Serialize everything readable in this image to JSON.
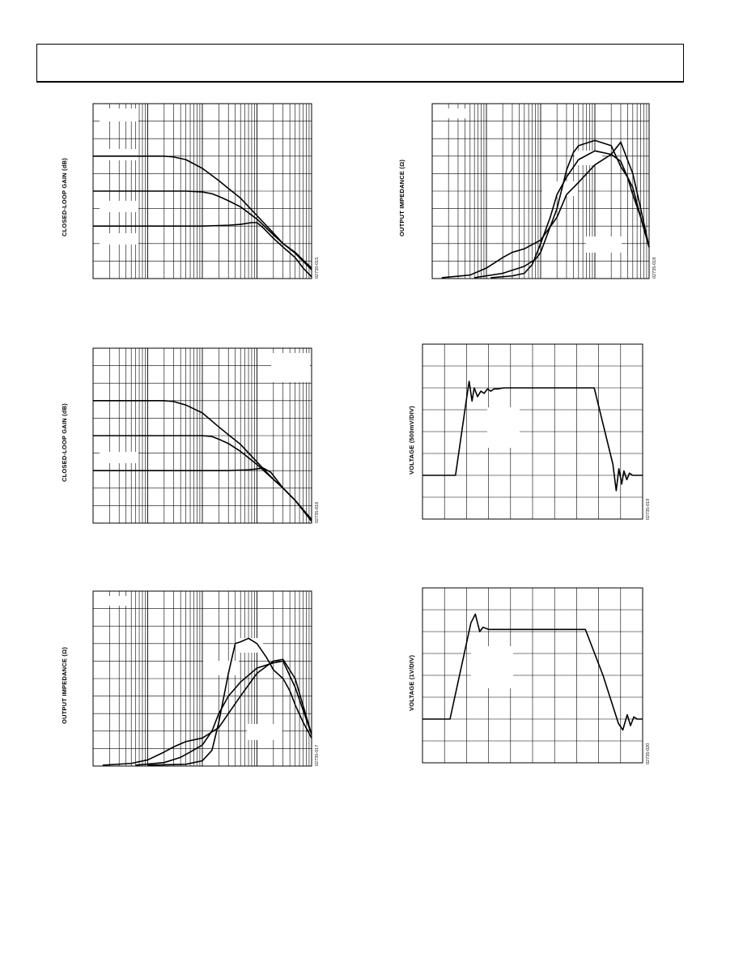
{
  "charts": [
    {
      "id": "fig15",
      "type": "line",
      "ylabel": "CLOSED-LOOP GAIN (dB)",
      "figure_id": "02735-015",
      "x_scale": "log",
      "xlim": [
        1,
        10000
      ],
      "ylim": [
        0,
        10
      ],
      "grid": true,
      "series": [
        {
          "x": [
            1,
            20,
            30,
            50,
            100,
            200,
            300,
            500,
            1000,
            2000,
            3000,
            5000,
            10000
          ],
          "y": [
            7,
            7,
            6.95,
            6.8,
            6.3,
            5.6,
            5.15,
            4.6,
            3.6,
            2.6,
            2.0,
            1.5,
            0.6
          ]
        },
        {
          "x": [
            1,
            50,
            100,
            150,
            200,
            300,
            500,
            1000,
            2000,
            3000,
            5000,
            10000
          ],
          "y": [
            5,
            5,
            4.95,
            4.85,
            4.7,
            4.45,
            4.1,
            3.4,
            2.5,
            2.0,
            1.45,
            0.5
          ]
        },
        {
          "x": [
            1,
            100,
            300,
            500,
            800,
            1000,
            1300,
            2000,
            3000,
            5000,
            7000,
            10000
          ],
          "y": [
            3,
            3,
            3.05,
            3.1,
            3.2,
            3.2,
            2.9,
            2.3,
            1.8,
            1.2,
            0.6,
            0.1
          ]
        }
      ]
    },
    {
      "id": "fig16",
      "type": "line",
      "ylabel": "CLOSED-LOOP GAIN (dB)",
      "figure_id": "02735-016",
      "x_scale": "log",
      "xlim": [
        1,
        10000
      ],
      "ylim": [
        0,
        10
      ],
      "grid": true,
      "series": [
        {
          "x": [
            1,
            20,
            30,
            50,
            100,
            200,
            300,
            500,
            1000,
            2000,
            3000,
            5000,
            10000
          ],
          "y": [
            7,
            7,
            6.95,
            6.75,
            6.3,
            5.5,
            5.05,
            4.5,
            3.5,
            2.5,
            2.0,
            1.3,
            0.2
          ]
        },
        {
          "x": [
            1,
            100,
            150,
            200,
            300,
            500,
            1000,
            2000,
            3000,
            5000,
            10000
          ],
          "y": [
            5,
            5,
            4.95,
            4.8,
            4.55,
            4.1,
            3.35,
            2.5,
            2.0,
            1.3,
            0.2
          ]
        },
        {
          "x": [
            1,
            300,
            700,
            1000,
            1300,
            1800,
            3000,
            5000,
            10000
          ],
          "y": [
            3,
            3,
            3.05,
            3.1,
            3.15,
            2.9,
            2.0,
            1.3,
            0.1
          ]
        }
      ]
    },
    {
      "id": "fig17",
      "type": "line",
      "ylabel": "OUTPUT IMPEDANCE (Ω)",
      "figure_id": "02735-017",
      "x_scale": "log",
      "xlim": [
        1,
        10000
      ],
      "ylim": [
        0,
        10
      ],
      "grid": true,
      "series": [
        {
          "x": [
            1.5,
            5,
            10,
            20,
            30,
            50,
            100,
            200,
            300,
            500,
            1000,
            2000,
            3000,
            5000,
            10000
          ],
          "y": [
            0.05,
            0.15,
            0.35,
            0.8,
            1.1,
            1.4,
            1.6,
            2.2,
            3.0,
            4.0,
            5.3,
            6.0,
            6.1,
            5.0,
            1.8
          ]
        },
        {
          "x": [
            6,
            20,
            40,
            60,
            100,
            150,
            200,
            300,
            500,
            1000,
            2000,
            3000,
            5000,
            10000
          ],
          "y": [
            0.05,
            0.2,
            0.5,
            0.8,
            1.2,
            2.0,
            3.0,
            4.0,
            4.8,
            5.6,
            5.9,
            6.0,
            4.5,
            1.8
          ]
        },
        {
          "x": [
            10,
            50,
            100,
            150,
            200,
            300,
            400,
            500,
            700,
            1000,
            1500,
            2000,
            3000,
            4000,
            5000,
            7000,
            10000
          ],
          "y": [
            0.05,
            0.1,
            0.3,
            0.9,
            2.5,
            5.3,
            7.0,
            7.1,
            7.3,
            7.0,
            6.2,
            5.5,
            5.0,
            4.3,
            3.5,
            2.5,
            1.6
          ]
        }
      ]
    },
    {
      "id": "fig18",
      "type": "line",
      "ylabel": "OUTPUT IMPEDANCE (Ω)",
      "figure_id": "02735-018",
      "x_scale": "log",
      "xlim": [
        1,
        10000
      ],
      "ylim": [
        0,
        10
      ],
      "grid": true,
      "series": [
        {
          "x": [
            1.5,
            5,
            10,
            20,
            30,
            50,
            100,
            200,
            300,
            500,
            1000,
            2000,
            3000,
            5000,
            7000,
            10000
          ],
          "y": [
            0.05,
            0.2,
            0.6,
            1.2,
            1.5,
            1.7,
            2.2,
            3.5,
            4.8,
            5.5,
            6.5,
            7.1,
            7.8,
            6.0,
            4.0,
            1.8
          ]
        },
        {
          "x": [
            6,
            20,
            50,
            80,
            100,
            200,
            300,
            400,
            500,
            1000,
            2000,
            3000,
            4000,
            5000,
            7000,
            10000
          ],
          "y": [
            0.05,
            0.3,
            0.7,
            1.1,
            1.5,
            4.0,
            6.2,
            7.2,
            7.6,
            7.9,
            7.6,
            6.4,
            5.8,
            5.2,
            3.5,
            1.8
          ]
        },
        {
          "x": [
            12,
            30,
            50,
            70,
            100,
            150,
            200,
            300,
            500,
            1000,
            2000,
            3000,
            4000,
            5000,
            7000,
            10000
          ],
          "y": [
            0.05,
            0.15,
            0.3,
            0.8,
            2.0,
            3.5,
            4.8,
            5.8,
            6.8,
            7.3,
            7.1,
            6.7,
            5.8,
            4.8,
            3.5,
            1.8
          ]
        }
      ]
    },
    {
      "id": "fig19",
      "type": "line",
      "ylabel": "VOLTAGE (500mV/DIV)",
      "figure_id": "02735-019",
      "xlim": [
        0,
        10
      ],
      "ylim": [
        0,
        8
      ],
      "grid": true,
      "series": [
        {
          "x": [
            0,
            1.5,
            2.0,
            2.12,
            2.25,
            2.35,
            2.5,
            2.65,
            2.8,
            2.95,
            3.1,
            3.25,
            3.4,
            3.7,
            4.0,
            7.8,
            8.65,
            8.8,
            8.92,
            9.05,
            9.15,
            9.28,
            9.4,
            9.55,
            10
          ],
          "y": [
            2,
            2,
            5.5,
            6.3,
            5.4,
            6.0,
            5.6,
            5.85,
            5.75,
            5.95,
            5.85,
            5.95,
            5.95,
            6.0,
            6.0,
            6.0,
            2.5,
            1.3,
            2.3,
            1.6,
            2.2,
            1.8,
            2.1,
            2.0,
            2.0
          ]
        }
      ]
    },
    {
      "id": "fig20",
      "type": "line",
      "ylabel": "VOLTAGE (1V/DIV)",
      "figure_id": "02735-020",
      "xlim": [
        0,
        10
      ],
      "ylim": [
        0,
        8
      ],
      "grid": true,
      "series": [
        {
          "x": [
            0,
            1.25,
            2.2,
            2.4,
            2.6,
            2.75,
            3.0,
            3.5,
            7.4,
            8.2,
            8.9,
            9.1,
            9.3,
            9.45,
            9.6,
            9.75,
            10
          ],
          "y": [
            2,
            2,
            6.4,
            6.8,
            6.0,
            6.2,
            6.1,
            6.1,
            6.1,
            4.0,
            1.8,
            1.5,
            2.2,
            1.7,
            2.1,
            2.0,
            2.0
          ]
        }
      ]
    }
  ]
}
